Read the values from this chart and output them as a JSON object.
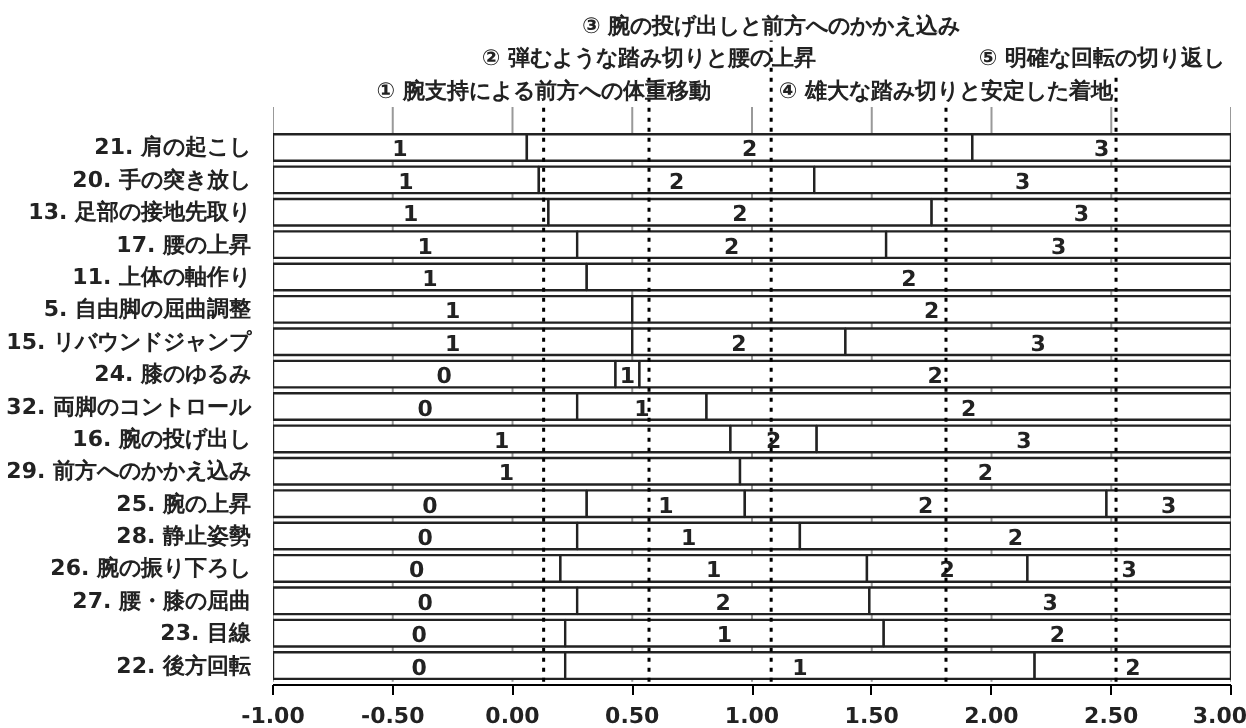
{
  "chart_data": {
    "type": "bar",
    "orientation": "horizontal",
    "categories": [
      "21. 肩の起こし",
      "20. 手の突き放し",
      "13. 足部の接地先取り",
      "17. 腰の上昇",
      "11. 上体の軸作り",
      "5. 自由脚の屈曲調整",
      "15. リバウンドジャンプ",
      "24. 膝のゆるみ",
      "32. 両脚のコントロール",
      "16. 腕の投げ出し",
      "29. 前方へのかかえ込み",
      "25. 腕の上昇",
      "28. 静止姿勢",
      "26. 腕の振り下ろし",
      "27. 腰・膝の屈曲",
      "23. 目線",
      "22. 後方回転"
    ],
    "series": [
      {
        "name": "0",
        "color": "#ffffff",
        "base": [
          null,
          null,
          null,
          null,
          null,
          null,
          null,
          -1,
          -1,
          null,
          null,
          -1,
          -1,
          -1,
          -1,
          -1,
          -1
        ],
        "values": [
          null,
          null,
          null,
          null,
          null,
          null,
          null,
          1.43,
          1.27,
          null,
          null,
          1.31,
          1.27,
          1.2,
          1.27,
          1.22,
          1.22
        ]
      },
      {
        "name": "1",
        "color": "#ffffff",
        "base": [
          -1,
          -1,
          -1,
          -1,
          -1,
          -1,
          -1,
          0.43,
          0.27,
          -1,
          -1,
          0.31,
          0.27,
          0.2,
          null,
          0.22,
          0.22
        ],
        "values": [
          1.06,
          1.11,
          1.15,
          1.27,
          1.31,
          1.5,
          1.5,
          0.1,
          0.54,
          1.91,
          1.95,
          0.66,
          0.93,
          1.28,
          null,
          1.33,
          1.96
        ]
      },
      {
        "name": "2",
        "color": "#ffffff",
        "base": [
          0.06,
          0.11,
          0.15,
          0.27,
          0.31,
          0.5,
          0.5,
          0.53,
          0.81,
          0.91,
          0.95,
          0.97,
          1.2,
          1.48,
          0.27,
          1.55,
          2.18
        ],
        "values": [
          1.86,
          1.15,
          1.6,
          1.29,
          2.69,
          2.5,
          0.89,
          2.47,
          2.19,
          0.36,
          2.05,
          1.51,
          1.8,
          0.67,
          1.22,
          1.45,
          0.82
        ]
      },
      {
        "name": "3",
        "color": "#ffffff",
        "base": [
          1.92,
          1.26,
          1.75,
          1.56,
          null,
          null,
          1.39,
          null,
          null,
          1.27,
          null,
          2.48,
          null,
          2.15,
          1.49,
          null,
          null
        ],
        "values": [
          1.08,
          1.74,
          1.25,
          1.44,
          null,
          null,
          1.61,
          null,
          null,
          1.73,
          null,
          0.52,
          null,
          0.85,
          1.51,
          null,
          null
        ]
      }
    ],
    "xlim": [
      -1,
      3
    ],
    "xticks": [
      {
        "value": -1,
        "label": "-1.00"
      },
      {
        "value": -0.5,
        "label": "-0.50"
      },
      {
        "value": 0,
        "label": "0.00"
      },
      {
        "value": 0.5,
        "label": "0.50"
      },
      {
        "value": 1,
        "label": "1.00"
      },
      {
        "value": 1.5,
        "label": "1.50"
      },
      {
        "value": 2,
        "label": "2.00"
      },
      {
        "value": 2.5,
        "label": "2.50"
      },
      {
        "value": 3,
        "label": "3.00"
      }
    ],
    "grid": "x",
    "ref_lines": [
      {
        "axis": "x",
        "value": 0.13,
        "label": "① 腕支持による前方への体重移動",
        "color": "#000000",
        "line_style": "dotted"
      },
      {
        "axis": "x",
        "value": 0.57,
        "label": "② 弾むような踏み切りと腰の上昇",
        "color": "#000000",
        "line_style": "dotted"
      },
      {
        "axis": "x",
        "value": 1.08,
        "label": "③ 腕の投げ出しと前方へのかかえ込み",
        "color": "#000000",
        "line_style": "dotted"
      },
      {
        "axis": "x",
        "value": 1.81,
        "label": "④ 雄大な踏み切りと安定した着地",
        "color": "#000000",
        "line_style": "dotted"
      },
      {
        "axis": "x",
        "value": 2.52,
        "label": "⑤ 明確な回転の切り返し",
        "color": "#000000",
        "line_style": "dotted"
      }
    ]
  }
}
